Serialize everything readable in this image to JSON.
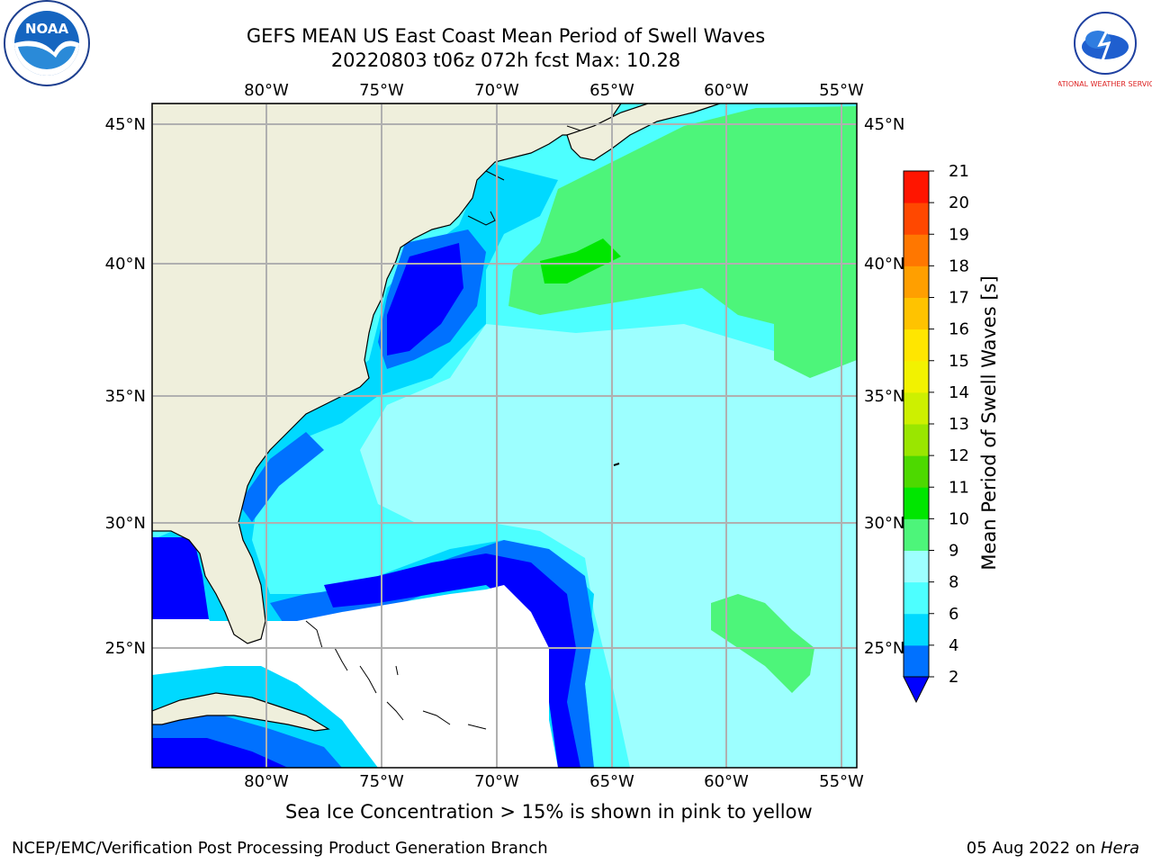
{
  "header": {
    "title_line1": "GEFS MEAN US East Coast Mean Period of Swell Waves",
    "title_line2": "20220803 t06z 072h fcst   Max: 10.28"
  },
  "logos": {
    "left": "NOAA",
    "right": "NATIONAL WEATHER SERVICE"
  },
  "map": {
    "lon_labels": [
      "80°W",
      "75°W",
      "70°W",
      "65°W",
      "60°W",
      "55°W"
    ],
    "lat_labels": [
      "45°N",
      "40°N",
      "35°N",
      "30°N",
      "25°N"
    ],
    "extent": {
      "lon": [
        -85,
        -54.5
      ],
      "lat": [
        20.5,
        46
      ]
    }
  },
  "colorbar": {
    "label": "Mean Period of Swell Waves [s]",
    "ticks": [
      "2",
      "4",
      "6",
      "8",
      "9",
      "10",
      "11",
      "12",
      "13",
      "14",
      "15",
      "16",
      "17",
      "18",
      "19",
      "20",
      "21"
    ],
    "colors": [
      "#0071ff",
      "#00d9ff",
      "#4dffff",
      "#9dffff",
      "#4df57a",
      "#00e600",
      "#4dd900",
      "#9ae600",
      "#cdf000",
      "#f2f200",
      "#ffe600",
      "#ffc300",
      "#ff9f00",
      "#ff7700",
      "#ff4800",
      "#ff1500"
    ],
    "under_color": "#0000ff"
  },
  "note": "Sea Ice Concentration > 15% is shown in pink to yellow",
  "footer": {
    "left": "NCEP/EMC/Verification Post Processing Product Generation Branch",
    "date": "05 Aug 2022 on ",
    "machine": "Hera"
  }
}
